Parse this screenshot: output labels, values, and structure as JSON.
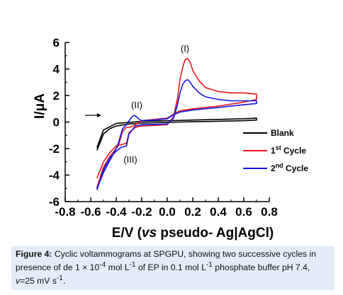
{
  "chart_data": {
    "type": "line",
    "xlabel": "E/V",
    "xlabel_italic": "vs",
    "xlabel_rest": " pseudo- Ag|AgCl",
    "ylabel": "I/μA",
    "xlim": [
      -0.8,
      0.8
    ],
    "ylim": [
      -6,
      6
    ],
    "x_ticks": [
      -0.8,
      -0.6,
      -0.4,
      -0.2,
      0.0,
      0.2,
      0.4,
      0.6,
      0.8
    ],
    "x_tick_labels": [
      "-0.8",
      "-0.6",
      "-0.4",
      "-0.2",
      "0.0",
      "0.2",
      "0.4",
      "0.6",
      "0.8"
    ],
    "y_ticks": [
      -6,
      -4,
      -2,
      0,
      2,
      4,
      6
    ],
    "y_tick_labels": [
      "-6",
      "-4",
      "-2",
      "0",
      "2",
      "4",
      "6"
    ],
    "legend_position": "bottom-right",
    "annotations": [
      "(I)",
      "(II)",
      "(III)"
    ],
    "series": [
      {
        "name": "Blank",
        "color": "#000000",
        "x": [
          -0.55,
          -0.5,
          -0.45,
          -0.4,
          -0.3,
          -0.2,
          0.0,
          0.2,
          0.4,
          0.6,
          0.7,
          0.7,
          0.6,
          0.4,
          0.2,
          0.0,
          -0.2,
          -0.4,
          -0.5,
          -0.55
        ],
        "y": [
          -2.1,
          -0.9,
          -0.5,
          -0.3,
          -0.15,
          -0.08,
          -0.02,
          0.02,
          0.06,
          0.1,
          0.15,
          0.3,
          0.25,
          0.2,
          0.15,
          0.1,
          0.05,
          -0.1,
          -0.6,
          -1.9
        ]
      },
      {
        "name": "1st Cycle",
        "color": "#e8141a",
        "x": [
          -0.55,
          -0.5,
          -0.45,
          -0.4,
          -0.36,
          -0.32,
          -0.3,
          -0.25,
          -0.2,
          0.0,
          0.05,
          0.08,
          0.1,
          0.12,
          0.14,
          0.16,
          0.18,
          0.2,
          0.25,
          0.3,
          0.4,
          0.5,
          0.6,
          0.7,
          0.7,
          0.6,
          0.4,
          0.2,
          0.1,
          0.05,
          0.0,
          -0.1,
          -0.2,
          -0.25,
          -0.28,
          -0.3,
          -0.32,
          -0.35,
          -0.38,
          -0.4,
          -0.45,
          -0.5,
          -0.55
        ],
        "y": [
          -4.2,
          -3.0,
          -2.3,
          -1.8,
          -1.7,
          -1.6,
          -0.8,
          -0.4,
          -0.3,
          -0.2,
          0.4,
          1.8,
          3.2,
          4.1,
          4.7,
          4.8,
          4.5,
          3.9,
          3.1,
          2.6,
          2.3,
          2.2,
          2.2,
          2.1,
          1.7,
          1.5,
          1.2,
          1.0,
          0.85,
          0.6,
          0.3,
          0.2,
          0.1,
          -0.2,
          -0.35,
          -0.4,
          -0.4,
          -0.7,
          -1.7,
          -2.0,
          -2.6,
          -3.4,
          -4.9
        ]
      },
      {
        "name": "2nd Cycle",
        "color": "#1414e6",
        "x": [
          -0.55,
          -0.5,
          -0.45,
          -0.4,
          -0.36,
          -0.32,
          -0.3,
          -0.25,
          -0.2,
          0.0,
          0.05,
          0.08,
          0.1,
          0.12,
          0.14,
          0.16,
          0.18,
          0.2,
          0.25,
          0.3,
          0.4,
          0.5,
          0.6,
          0.7,
          0.7,
          0.6,
          0.4,
          0.2,
          0.1,
          0.05,
          0.0,
          -0.1,
          -0.2,
          -0.22,
          -0.24,
          -0.26,
          -0.28,
          -0.3,
          -0.32,
          -0.35,
          -0.38,
          -0.4,
          -0.45,
          -0.5,
          -0.55
        ],
        "y": [
          -5.1,
          -3.6,
          -2.7,
          -2.2,
          -1.9,
          -1.8,
          -0.9,
          -0.3,
          -0.2,
          -0.15,
          0.3,
          1.3,
          2.2,
          2.8,
          3.1,
          3.2,
          3.0,
          2.7,
          2.2,
          1.9,
          1.7,
          1.6,
          1.6,
          1.6,
          1.4,
          1.3,
          1.1,
          0.9,
          0.75,
          0.55,
          0.25,
          0.15,
          0.1,
          0.2,
          0.4,
          0.5,
          0.35,
          0.1,
          -0.2,
          -0.5,
          -1.5,
          -2.0,
          -2.9,
          -3.8,
          -5.0
        ]
      }
    ]
  },
  "caption": {
    "label": "Figure 4:",
    "text_1": " Cyclic voltammograms at SPGPU, showing two successive cycles in presence of de 1 × 10",
    "sup_1": "-4",
    "text_2": " mol L",
    "sup_2": "-1",
    "text_3": " of EP in 0.1 mol L",
    "sup_3": "-1",
    "text_4": " phosphate buffer pH 7.4, ",
    "v_symbol": "v",
    "text_5": "=25 mV s",
    "sup_4": "-1",
    "text_6": "."
  }
}
